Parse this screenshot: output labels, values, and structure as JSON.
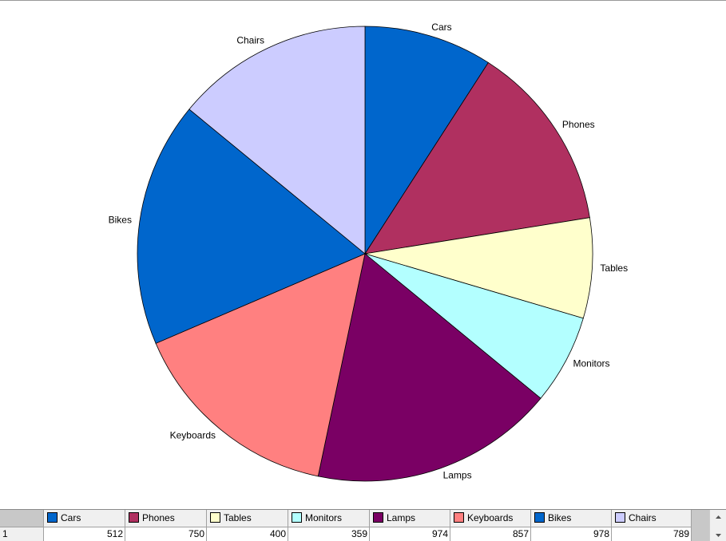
{
  "chart_data": {
    "type": "pie",
    "categories": [
      "Cars",
      "Phones",
      "Tables",
      "Monitors",
      "Lamps",
      "Keyboards",
      "Bikes",
      "Chairs"
    ],
    "values": [
      512,
      750,
      400,
      359,
      974,
      857,
      978,
      789
    ],
    "colors": [
      "#0066cc",
      "#b03060",
      "#ffffcc",
      "#b3ffff",
      "#7a0064",
      "#ff8080",
      "#0066cc",
      "#ccccff"
    ]
  },
  "table": {
    "row_labels": [
      "1"
    ]
  }
}
